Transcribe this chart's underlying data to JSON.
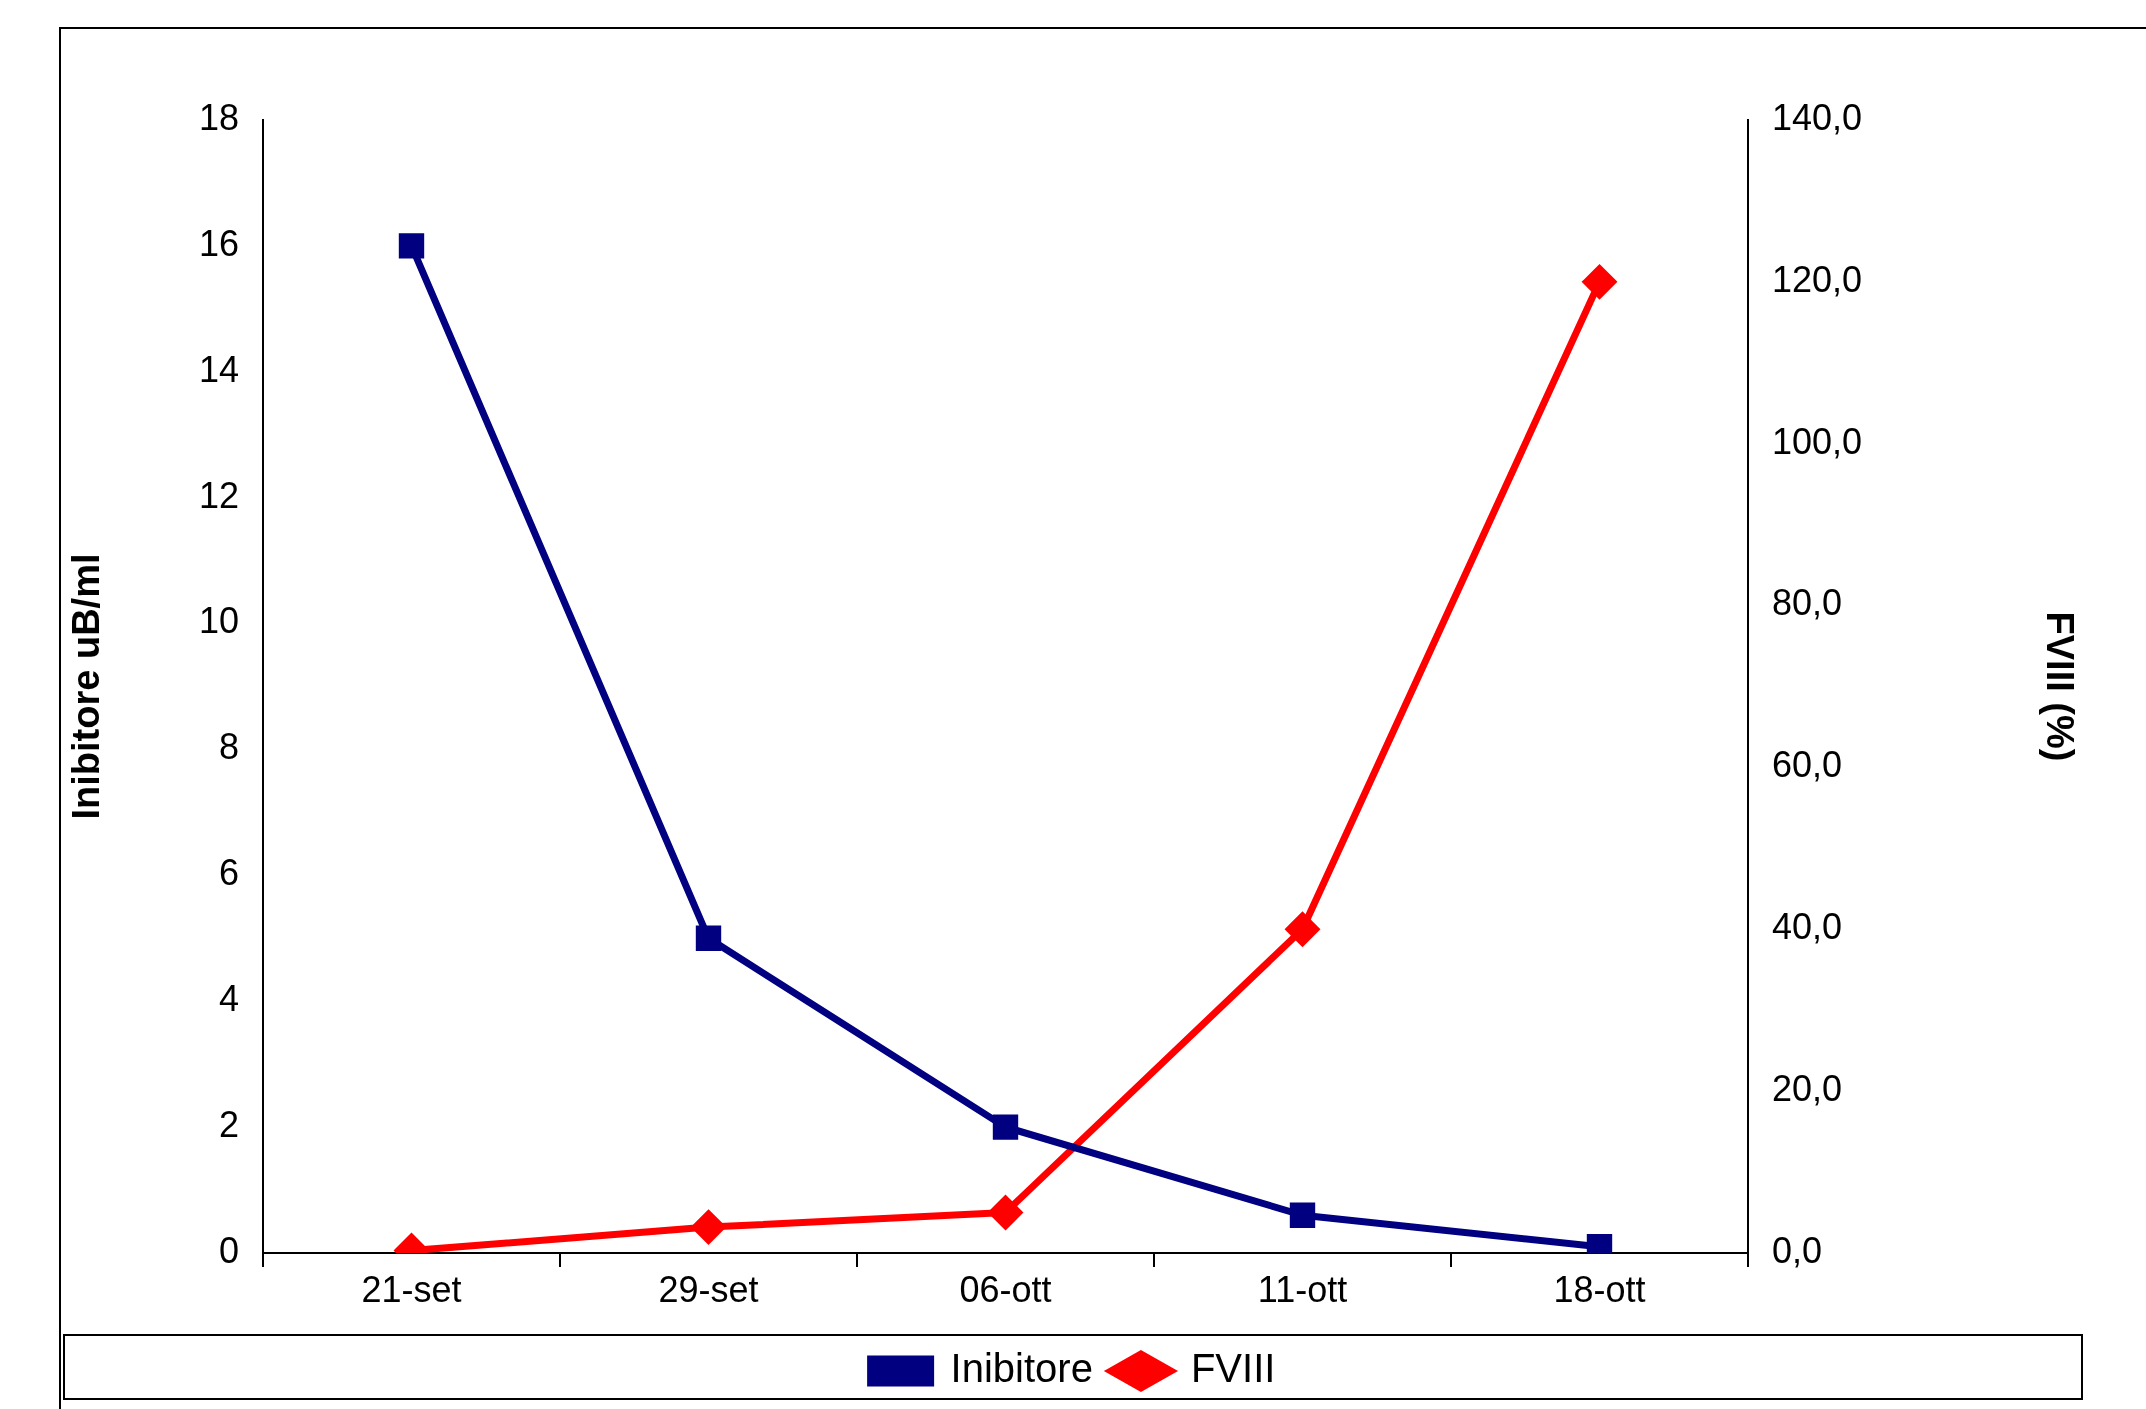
{
  "chart_data": {
    "type": "line",
    "categories": [
      "21-set",
      "29-set",
      "06-ott",
      "11-ott",
      "18-ott"
    ],
    "ylabel": "Inibitore uB/ml",
    "y2label": "FVIII (%)",
    "ylim": [
      0,
      18
    ],
    "yticks": [
      0,
      2,
      4,
      6,
      8,
      10,
      12,
      14,
      16,
      18
    ],
    "y2lim": [
      0,
      140
    ],
    "y2ticks": [
      {
        "value": 0,
        "label": "0,0"
      },
      {
        "value": 20,
        "label": "20,0"
      },
      {
        "value": 40,
        "label": "40,0"
      },
      {
        "value": 60,
        "label": "60,0"
      },
      {
        "value": 80,
        "label": "80,0"
      },
      {
        "value": 100,
        "label": "100,0"
      },
      {
        "value": 120,
        "label": "120,0"
      },
      {
        "value": 140,
        "label": "140,0"
      }
    ],
    "series": [
      {
        "name": "Inibitore",
        "color": "#000080",
        "marker": "square",
        "values": [
          16,
          5,
          2,
          0.6,
          0.1
        ]
      },
      {
        "name": "FVIII",
        "color": "#ff0000",
        "marker": "diamond",
        "axis": "y2",
        "values": [
          0.3,
          3.2,
          5,
          40,
          120
        ]
      }
    ],
    "grid": false,
    "legend": "bottom",
    "line_style": "solid"
  }
}
